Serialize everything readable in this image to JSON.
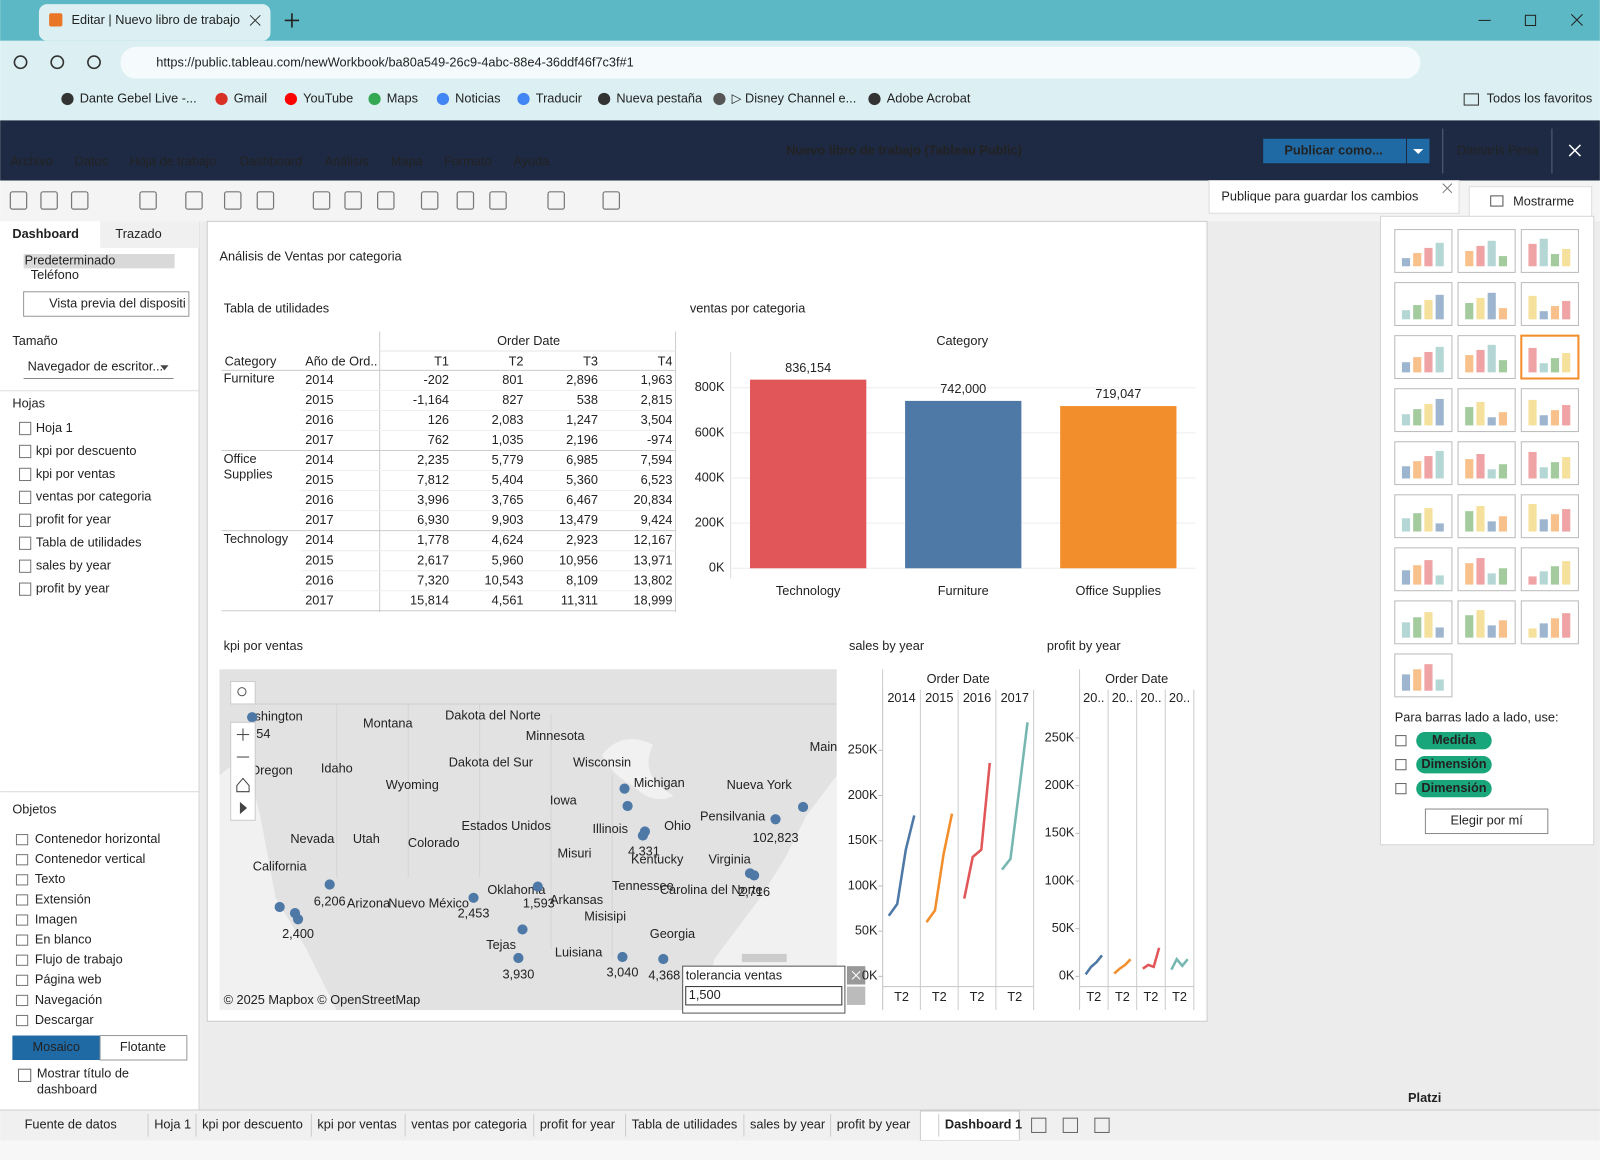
{
  "browser": {
    "tab_title": "Editar | Nuevo libro de trabajo",
    "url": "https://public.tableau.com/newWorkbook/ba80a549-26c9-4abc-88e4-36ddf46f7c3f#1",
    "bookmarks": [
      "Dante Gebel Live -...",
      "Gmail",
      "YouTube",
      "Maps",
      "Noticias",
      "Traducir",
      "Nueva pestaña",
      "▷ Disney Channel e...",
      "Adobe Acrobat"
    ],
    "all_bookmarks": "Todos los favoritos"
  },
  "app": {
    "menu": [
      "Archivo",
      "Datos",
      "Hoja de trabajo",
      "Dashboard",
      "Análisis",
      "Mapa",
      "Formato",
      "Ayuda"
    ],
    "title": "Nuevo libro de trabajo (Tableau Public)",
    "publish_button": "Publicar como...",
    "user": "Damaris Pena",
    "save_notice": "Publique para guardar los cambios"
  },
  "sidebar": {
    "tabs": [
      "Dashboard",
      "Trazado"
    ],
    "devices": [
      "Predeterminado",
      "Teléfono"
    ],
    "preview_button": "Vista previa del dispositi",
    "size_label": "Tamaño",
    "size_value": "Navegador de escritor...",
    "sheets_label": "Hojas",
    "sheets": [
      "Hoja 1",
      "kpi por descuento",
      "kpi por ventas",
      "ventas por categoria",
      "profit for year",
      "Tabla de utilidades",
      "sales by year",
      "profit by year"
    ],
    "objects_label": "Objetos",
    "objects": [
      "Contenedor horizontal",
      "Contenedor vertical",
      "Texto",
      "Extensión",
      "Imagen",
      "En blanco",
      "Flujo de trabajo",
      "Página web",
      "Navegación",
      "Descargar"
    ],
    "layout_buttons": [
      "Mosaico",
      "Flotante"
    ],
    "show_title": "Mostrar título de dashboard"
  },
  "dashboard": {
    "title": "Análisis de Ventas por categoria",
    "utilities_table": {
      "title": "Tabla de utilidades",
      "column_group": "Order Date",
      "headers": [
        "Category",
        "Año de Ord..",
        "T1",
        "T2",
        "T3",
        "T4"
      ],
      "groups": [
        {
          "category": "Furniture",
          "rows": [
            [
              "2014",
              "-202",
              "801",
              "2,896",
              "1,963"
            ],
            [
              "2015",
              "-1,164",
              "827",
              "538",
              "2,815"
            ],
            [
              "2016",
              "126",
              "2,083",
              "1,247",
              "3,504"
            ],
            [
              "2017",
              "762",
              "1,035",
              "2,196",
              "-974"
            ]
          ]
        },
        {
          "category": "Office Supplies",
          "rows": [
            [
              "2014",
              "2,235",
              "5,779",
              "6,985",
              "7,594"
            ],
            [
              "2015",
              "7,812",
              "5,404",
              "5,360",
              "6,523"
            ],
            [
              "2016",
              "3,996",
              "3,765",
              "6,467",
              "20,834"
            ],
            [
              "2017",
              "6,930",
              "9,903",
              "13,479",
              "9,424"
            ]
          ]
        },
        {
          "category": "Technology",
          "rows": [
            [
              "2014",
              "1,778",
              "4,624",
              "2,923",
              "12,167"
            ],
            [
              "2015",
              "2,617",
              "5,960",
              "10,956",
              "13,971"
            ],
            [
              "2016",
              "7,320",
              "10,543",
              "8,109",
              "13,802"
            ],
            [
              "2017",
              "15,814",
              "4,561",
              "11,311",
              "18,999"
            ]
          ]
        }
      ]
    },
    "sales_by_category": {
      "type": "bar",
      "title": "ventas por categoria",
      "axis_title": "Category",
      "categories": [
        "Technology",
        "Furniture",
        "Office Supplies"
      ],
      "values": [
        836154,
        742000,
        719047
      ],
      "value_labels": [
        "836,154",
        "742,000",
        "719,047"
      ],
      "colors": [
        "#e15759",
        "#4e79a7",
        "#f28e2b"
      ],
      "ylim": [
        0,
        900000
      ],
      "yticks": [
        {
          "value": 0,
          "label": "0K"
        },
        {
          "value": 200000,
          "label": "200K"
        },
        {
          "value": 400000,
          "label": "400K"
        },
        {
          "value": 600000,
          "label": "600K"
        },
        {
          "value": 800000,
          "label": "800K"
        }
      ],
      "grid": true
    },
    "sales_kpi_map": {
      "title": "kpi por ventas",
      "place_names": [
        "shington",
        "Montana",
        "Dakota del Norte",
        "Minnesota",
        "Dakota del Sur",
        "Wisconsin",
        "Michigan",
        "Oregon",
        "Idaho",
        "Wyoming",
        "Iowa",
        "Nevada",
        "Utah",
        "Colorado",
        "Estados Unidos",
        "Illinois",
        "Ohio",
        "Pensilvania",
        "Nueva York",
        "Main",
        "California",
        "Arizona",
        "Nuevo México",
        "Oklahoma",
        "Arkansas",
        "Misuri",
        "Kentucky",
        "Virginia",
        "Tennessee",
        "Carolina del Norte",
        "Misisipi",
        "Georgia",
        "Tejas",
        "Luisiana"
      ],
      "point_labels": [
        "54",
        "6,206",
        "2,400",
        "2,453",
        "1,593",
        "3,930",
        "4,331",
        "3,040",
        "4,368",
        "102,823",
        "2,716"
      ],
      "attribution": "© 2025 Mapbox © OpenStreetMap",
      "parameter": {
        "title": "tolerancia ventas",
        "value": "1,500"
      }
    },
    "sales_by_year": {
      "type": "line",
      "title": "sales by year",
      "column_group": "Order Date",
      "quarter_labels": [
        "T2",
        "T2",
        "T2",
        "T2"
      ],
      "series": [
        {
          "name": "2014",
          "color": "#4e79a7",
          "values": [
            67000,
            80000,
            140000,
            178000
          ]
        },
        {
          "name": "2015",
          "color": "#f28e2b",
          "values": [
            60000,
            73000,
            135000,
            180000
          ]
        },
        {
          "name": "2016",
          "color": "#e15759",
          "values": [
            86000,
            132000,
            140000,
            236000
          ]
        },
        {
          "name": "2017",
          "color": "#76b7b2",
          "values": [
            118000,
            130000,
            205000,
            281000
          ]
        }
      ],
      "ylim": [
        0,
        290000
      ],
      "yticks": [
        {
          "value": 0,
          "label": "0K"
        },
        {
          "value": 50000,
          "label": "50K"
        },
        {
          "value": 100000,
          "label": "100K"
        },
        {
          "value": 150000,
          "label": "150K"
        },
        {
          "value": 200000,
          "label": "200K"
        },
        {
          "value": 250000,
          "label": "250K"
        }
      ]
    },
    "profit_by_year": {
      "type": "line",
      "title": "profit by year",
      "column_group": "Order Date",
      "headers": [
        "20..",
        "20..",
        "20..",
        "20.."
      ],
      "quarter_labels": [
        "T2",
        "T2",
        "T2",
        "T2"
      ],
      "series": [
        {
          "color": "#4e79a7",
          "values": [
            2000,
            10000,
            15000,
            22000
          ]
        },
        {
          "color": "#f28e2b",
          "values": [
            3000,
            8000,
            12000,
            18000
          ]
        },
        {
          "color": "#e15759",
          "values": [
            8000,
            12000,
            10000,
            30000
          ]
        },
        {
          "color": "#76b7b2",
          "values": [
            7000,
            18000,
            11000,
            18000
          ]
        }
      ],
      "ylim": [
        0,
        275000
      ],
      "yticks": [
        {
          "value": 0,
          "label": "0K"
        },
        {
          "value": 50000,
          "label": "50K"
        },
        {
          "value": 100000,
          "label": "100K"
        },
        {
          "value": 150000,
          "label": "150K"
        },
        {
          "value": 200000,
          "label": "200K"
        },
        {
          "value": 250000,
          "label": "250K"
        }
      ]
    }
  },
  "show_me": {
    "title": "Mostrarme",
    "hint": "Para barras lado a lado, use:",
    "requirements": [
      "Medida",
      "Dimensión",
      "Dimensión"
    ],
    "button": "Elegir por mí"
  },
  "sheet_tabs": [
    "Fuente de datos",
    "Hoja 1",
    "kpi por descuento",
    "kpi por ventas",
    "ventas por categoria",
    "profit for year",
    "Tabla de utilidades",
    "sales by year",
    "profit by year",
    "Dashboard 1"
  ],
  "watermark": "Platzi"
}
